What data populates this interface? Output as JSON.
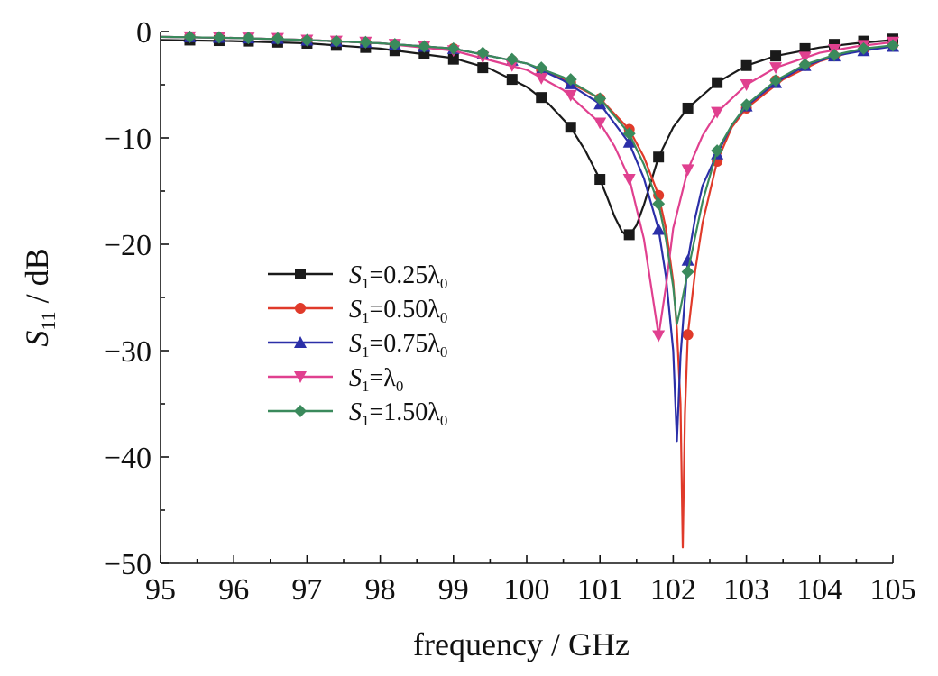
{
  "chart_data": {
    "type": "line",
    "title": "",
    "xlabel": "frequency / GHz",
    "ylabel_main": "S",
    "ylabel_sub": "11",
    "ylabel_unit": " / dB",
    "xlim": [
      95,
      105
    ],
    "ylim": [
      -50,
      0
    ],
    "xticks": [
      95,
      96,
      97,
      98,
      99,
      100,
      101,
      102,
      103,
      104,
      105
    ],
    "yticks": [
      0,
      -10,
      -20,
      -30,
      -40,
      -50
    ],
    "ytick_labels": [
      "0",
      "−10",
      "−20",
      "−30",
      "−40",
      "−50"
    ],
    "grid": false,
    "legend_position": "center-left",
    "series": [
      {
        "name": "S1=0.25λ0",
        "label_parts": [
          "S",
          "1",
          "=0.25λ",
          "0"
        ],
        "color": "#1a1a1a",
        "marker": "square",
        "curve": [
          [
            95,
            -0.8
          ],
          [
            96,
            -0.9
          ],
          [
            97,
            -1.1
          ],
          [
            98,
            -1.6
          ],
          [
            99,
            -2.5
          ],
          [
            99.5,
            -3.5
          ],
          [
            100,
            -5.2
          ],
          [
            100.3,
            -6.8
          ],
          [
            100.6,
            -9.0
          ],
          [
            100.8,
            -11.2
          ],
          [
            101.0,
            -13.9
          ],
          [
            101.1,
            -15.6
          ],
          [
            101.2,
            -17.4
          ],
          [
            101.3,
            -18.8
          ],
          [
            101.35,
            -19.1
          ],
          [
            101.4,
            -19.2
          ],
          [
            101.5,
            -18.2
          ],
          [
            101.6,
            -16.3
          ],
          [
            101.8,
            -11.8
          ],
          [
            102.0,
            -9.0
          ],
          [
            102.2,
            -7.2
          ],
          [
            102.6,
            -4.8
          ],
          [
            103,
            -3.2
          ],
          [
            103.4,
            -2.3
          ],
          [
            104,
            -1.5
          ],
          [
            104.5,
            -1.1
          ],
          [
            105,
            -0.8
          ]
        ],
        "marker_x": [
          95.4,
          95.8,
          96.2,
          96.6,
          97,
          97.4,
          97.8,
          98.2,
          98.6,
          99,
          99.4,
          99.8,
          100.2,
          100.6,
          101.0,
          101.4,
          101.8,
          102.2,
          102.6,
          103.0,
          103.4,
          103.8,
          104.2,
          104.6,
          105.0
        ],
        "marker_y": [
          -0.8,
          -0.85,
          -0.9,
          -1.0,
          -1.1,
          -1.3,
          -1.5,
          -1.8,
          -2.1,
          -2.6,
          -3.4,
          -4.5,
          -6.2,
          -9.0,
          -13.9,
          -19.1,
          -11.8,
          -7.2,
          -4.8,
          -3.2,
          -2.3,
          -1.6,
          -1.2,
          -0.9,
          -0.7
        ]
      },
      {
        "name": "S1=0.50λ0",
        "label_parts": [
          "S",
          "1",
          "=0.50λ",
          "0"
        ],
        "color": "#e03a2a",
        "marker": "circle",
        "curve": [
          [
            95,
            -0.5
          ],
          [
            96,
            -0.6
          ],
          [
            97,
            -0.8
          ],
          [
            98,
            -1.1
          ],
          [
            99,
            -1.6
          ],
          [
            100,
            -3.0
          ],
          [
            100.5,
            -4.5
          ],
          [
            101.0,
            -6.3
          ],
          [
            101.4,
            -9.2
          ],
          [
            101.6,
            -11.8
          ],
          [
            101.8,
            -15.4
          ],
          [
            101.9,
            -18.5
          ],
          [
            102.0,
            -23.5
          ],
          [
            102.05,
            -28.0
          ],
          [
            102.1,
            -35.0
          ],
          [
            102.13,
            -48.5
          ],
          [
            102.16,
            -36.0
          ],
          [
            102.2,
            -28.5
          ],
          [
            102.3,
            -22.5
          ],
          [
            102.4,
            -18.0
          ],
          [
            102.6,
            -12.2
          ],
          [
            102.8,
            -9.0
          ],
          [
            103.0,
            -7.2
          ],
          [
            103.5,
            -4.5
          ],
          [
            104,
            -2.8
          ],
          [
            104.5,
            -1.8
          ],
          [
            105,
            -1.3
          ]
        ],
        "marker_x": [
          95.4,
          95.8,
          96.2,
          96.6,
          97,
          97.4,
          97.8,
          98.2,
          98.6,
          99,
          99.4,
          99.8,
          100.2,
          100.6,
          101.0,
          101.4,
          101.8,
          102.2,
          102.6,
          103.0,
          103.4,
          103.8,
          104.2,
          104.6,
          105.0
        ],
        "marker_y": [
          -0.5,
          -0.55,
          -0.6,
          -0.65,
          -0.8,
          -0.9,
          -1.0,
          -1.2,
          -1.4,
          -1.6,
          -2.1,
          -2.7,
          -3.6,
          -4.8,
          -6.3,
          -9.2,
          -15.4,
          -28.5,
          -12.2,
          -7.2,
          -4.6,
          -3.2,
          -2.3,
          -1.7,
          -1.3
        ]
      },
      {
        "name": "S1=0.75λ0",
        "label_parts": [
          "S",
          "1",
          "=0.75λ",
          "0"
        ],
        "color": "#2b2fa8",
        "marker": "triangle-up",
        "curve": [
          [
            95,
            -0.5
          ],
          [
            96,
            -0.6
          ],
          [
            97,
            -0.8
          ],
          [
            98,
            -1.1
          ],
          [
            99,
            -1.6
          ],
          [
            100,
            -3.0
          ],
          [
            100.5,
            -4.6
          ],
          [
            101.0,
            -6.8
          ],
          [
            101.4,
            -10.5
          ],
          [
            101.6,
            -13.8
          ],
          [
            101.8,
            -18.6
          ],
          [
            101.9,
            -23.0
          ],
          [
            102.0,
            -30.0
          ],
          [
            102.05,
            -38.5
          ],
          [
            102.1,
            -30.5
          ],
          [
            102.2,
            -21.5
          ],
          [
            102.3,
            -17.5
          ],
          [
            102.4,
            -14.5
          ],
          [
            102.6,
            -11.5
          ],
          [
            102.8,
            -8.8
          ],
          [
            103.0,
            -7.0
          ],
          [
            103.4,
            -4.8
          ],
          [
            103.8,
            -3.2
          ],
          [
            104.2,
            -2.3
          ],
          [
            104.6,
            -1.8
          ],
          [
            105,
            -1.4
          ]
        ],
        "marker_x": [
          95.4,
          95.8,
          96.2,
          96.6,
          97,
          97.4,
          97.8,
          98.2,
          98.6,
          99,
          99.4,
          99.8,
          100.2,
          100.6,
          101.0,
          101.4,
          101.8,
          102.2,
          102.6,
          103.0,
          103.4,
          103.8,
          104.2,
          104.6,
          105.0
        ],
        "marker_y": [
          -0.5,
          -0.55,
          -0.6,
          -0.65,
          -0.8,
          -0.9,
          -1.0,
          -1.2,
          -1.4,
          -1.6,
          -2.1,
          -2.7,
          -3.6,
          -4.9,
          -6.8,
          -10.4,
          -18.6,
          -21.5,
          -11.5,
          -7.0,
          -4.8,
          -3.2,
          -2.3,
          -1.8,
          -1.4
        ]
      },
      {
        "name": "S1=λ0",
        "label_parts": [
          "S",
          "1",
          "=λ",
          "0"
        ],
        "color": "#e0408f",
        "marker": "triangle-down",
        "curve": [
          [
            95,
            -0.5
          ],
          [
            96,
            -0.6
          ],
          [
            97,
            -0.8
          ],
          [
            98,
            -1.1
          ],
          [
            99,
            -1.8
          ],
          [
            100,
            -3.6
          ],
          [
            100.5,
            -5.5
          ],
          [
            101.0,
            -8.6
          ],
          [
            101.2,
            -10.8
          ],
          [
            101.4,
            -13.8
          ],
          [
            101.6,
            -19.5
          ],
          [
            101.7,
            -24.0
          ],
          [
            101.8,
            -28.6
          ],
          [
            101.9,
            -24.0
          ],
          [
            102.0,
            -18.5
          ],
          [
            102.2,
            -13.0
          ],
          [
            102.4,
            -9.8
          ],
          [
            102.6,
            -7.6
          ],
          [
            103.0,
            -5.0
          ],
          [
            103.4,
            -3.4
          ],
          [
            104,
            -2.0
          ],
          [
            104.5,
            -1.4
          ],
          [
            105,
            -1.0
          ]
        ],
        "marker_x": [
          95.4,
          95.8,
          96.2,
          96.6,
          97,
          97.4,
          97.8,
          98.2,
          98.6,
          99,
          99.4,
          99.8,
          100.2,
          100.6,
          101.0,
          101.4,
          101.8,
          102.2,
          102.6,
          103.0,
          103.4,
          103.8,
          104.2,
          104.6,
          105.0
        ],
        "marker_y": [
          -0.5,
          -0.55,
          -0.6,
          -0.65,
          -0.8,
          -0.9,
          -1.0,
          -1.2,
          -1.4,
          -1.8,
          -2.4,
          -3.2,
          -4.4,
          -6.0,
          -8.6,
          -13.9,
          -28.6,
          -13.0,
          -7.6,
          -5.0,
          -3.4,
          -2.4,
          -1.7,
          -1.3,
          -1.0
        ]
      },
      {
        "name": "S1=1.50λ0",
        "label_parts": [
          "S",
          "1",
          "=1.50λ",
          "0"
        ],
        "color": "#3a8a5c",
        "marker": "diamond",
        "curve": [
          [
            95,
            -0.5
          ],
          [
            96,
            -0.6
          ],
          [
            97,
            -0.8
          ],
          [
            98,
            -1.1
          ],
          [
            99,
            -1.6
          ],
          [
            100,
            -3.0
          ],
          [
            100.5,
            -4.3
          ],
          [
            101.0,
            -6.3
          ],
          [
            101.4,
            -9.6
          ],
          [
            101.6,
            -12.5
          ],
          [
            101.8,
            -16.2
          ],
          [
            101.9,
            -19.5
          ],
          [
            102.0,
            -24.0
          ],
          [
            102.05,
            -27.5
          ],
          [
            102.1,
            -26.0
          ],
          [
            102.2,
            -22.6
          ],
          [
            102.4,
            -16.0
          ],
          [
            102.6,
            -11.2
          ],
          [
            102.8,
            -8.8
          ],
          [
            103.0,
            -6.9
          ],
          [
            103.4,
            -4.6
          ],
          [
            103.8,
            -3.1
          ],
          [
            104.2,
            -2.2
          ],
          [
            104.6,
            -1.6
          ],
          [
            105,
            -1.3
          ]
        ],
        "marker_x": [
          95.4,
          95.8,
          96.2,
          96.6,
          97,
          97.4,
          97.8,
          98.2,
          98.6,
          99,
          99.4,
          99.8,
          100.2,
          100.6,
          101.0,
          101.4,
          101.8,
          102.2,
          102.6,
          103.0,
          103.4,
          103.8,
          104.2,
          104.6,
          105.0
        ],
        "marker_y": [
          -0.5,
          -0.55,
          -0.6,
          -0.65,
          -0.8,
          -0.9,
          -1.0,
          -1.2,
          -1.4,
          -1.6,
          -2.0,
          -2.6,
          -3.4,
          -4.5,
          -6.3,
          -9.6,
          -16.2,
          -22.6,
          -11.2,
          -6.9,
          -4.6,
          -3.1,
          -2.2,
          -1.6,
          -1.3
        ]
      }
    ]
  }
}
